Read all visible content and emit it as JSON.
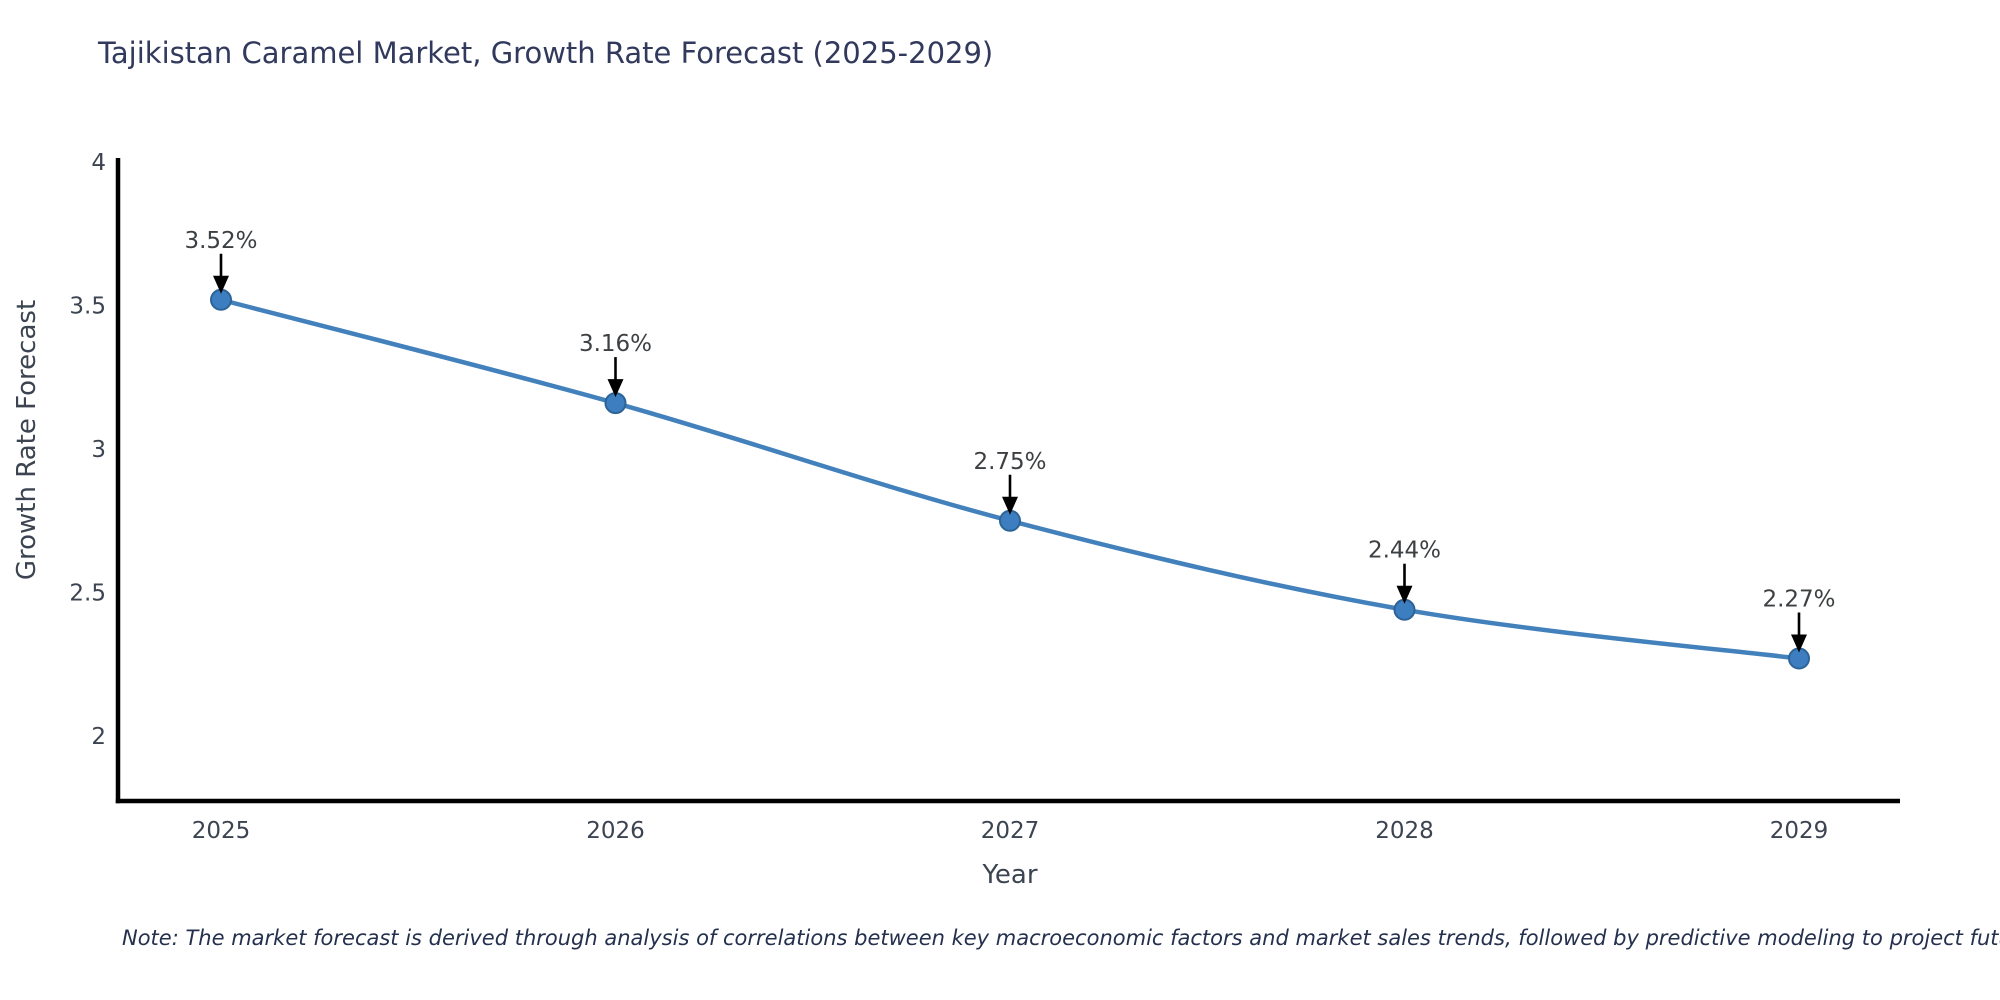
{
  "title": "Tajikistan Caramel Market, Growth Rate Forecast (2025-2029)",
  "note": "Note: The market forecast is derived through analysis of correlations between key macroeconomic factors and market sales trends, followed by predictive modeling to project future sales",
  "chart_data": {
    "type": "line",
    "title": "Tajikistan Caramel Market, Growth Rate Forecast (2025-2029)",
    "categories": [
      "2025",
      "2026",
      "2027",
      "2028",
      "2029"
    ],
    "series": [
      {
        "name": "Growth Rate Forecast",
        "values": [
          3.52,
          3.16,
          2.75,
          2.44,
          2.27
        ]
      }
    ],
    "point_labels": [
      "3.52%",
      "3.16%",
      "2.75%",
      "2.44%",
      "2.27%"
    ],
    "xlabel": "Year",
    "ylabel": "Growth Rate Forecast",
    "ytick_labels": [
      "4",
      "3.5",
      "3",
      "2.5",
      "2"
    ],
    "ytick_values": [
      4,
      3.5,
      3,
      2.5,
      2
    ],
    "ylim": [
      1.77,
      4.0
    ],
    "grid": false,
    "legend_position": "none",
    "colors": {
      "line": "#4381bc",
      "marker_fill": "#3c7ebf",
      "marker_edge": "#2d6396",
      "axis": "#000000",
      "arrow": "#000000",
      "title_text": "#31395c",
      "tick_text": "#3b4450",
      "annotation_text": "#3d4043",
      "note_text": "#24304d"
    }
  }
}
